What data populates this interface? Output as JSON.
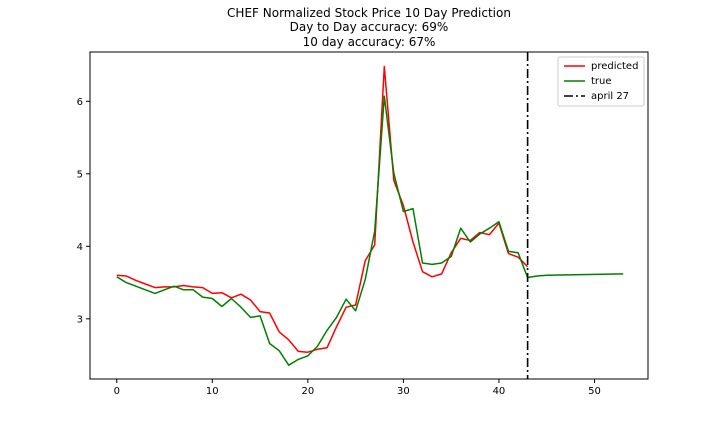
{
  "chart_data": {
    "type": "line",
    "title_lines": [
      "CHEF Normalized Stock Price 10 Day Prediction",
      "Day to Day accuracy: 69%",
      "10 day accuracy: 67%"
    ],
    "xlabel": "",
    "ylabel": "",
    "xlim": [
      -2.8,
      55.6
    ],
    "ylim": [
      2.17,
      6.68
    ],
    "xticks": [
      0,
      10,
      20,
      30,
      40,
      50
    ],
    "yticks": [
      3,
      4,
      5,
      6
    ],
    "grid": false,
    "legend_position": "top-right",
    "series": [
      {
        "name": "predicted",
        "color": "#ff0000",
        "dash": "solid",
        "x": [
          0,
          1,
          2,
          3,
          4,
          5,
          6,
          7,
          8,
          9,
          10,
          11,
          12,
          13,
          14,
          15,
          16,
          17,
          18,
          19,
          20,
          21,
          22,
          23,
          24,
          25,
          26,
          27,
          28,
          29,
          30,
          31,
          32,
          33,
          34,
          35,
          36,
          37,
          38,
          39,
          40,
          41,
          42,
          43
        ],
        "y": [
          3.6,
          3.59,
          3.53,
          3.48,
          3.43,
          3.44,
          3.44,
          3.46,
          3.44,
          3.43,
          3.35,
          3.36,
          3.29,
          3.34,
          3.26,
          3.1,
          3.08,
          2.82,
          2.71,
          2.55,
          2.54,
          2.58,
          2.6,
          2.89,
          3.16,
          3.19,
          3.8,
          4.02,
          6.48,
          4.91,
          4.56,
          4.06,
          3.65,
          3.58,
          3.62,
          3.91,
          4.11,
          4.08,
          4.19,
          4.16,
          4.32,
          3.9,
          3.85,
          3.72
        ]
      },
      {
        "name": "true",
        "color": "#008000",
        "dash": "solid",
        "x": [
          0,
          1,
          2,
          3,
          4,
          5,
          6,
          7,
          8,
          9,
          10,
          11,
          12,
          13,
          14,
          15,
          16,
          17,
          18,
          19,
          20,
          21,
          22,
          23,
          24,
          25,
          26,
          27,
          28,
          29,
          30,
          31,
          32,
          33,
          34,
          35,
          36,
          37,
          38,
          39,
          40,
          41,
          42,
          43,
          44,
          45,
          53
        ],
        "y": [
          3.58,
          3.5,
          3.45,
          3.4,
          3.35,
          3.4,
          3.45,
          3.4,
          3.4,
          3.3,
          3.28,
          3.17,
          3.28,
          3.16,
          3.02,
          3.04,
          2.66,
          2.56,
          2.36,
          2.44,
          2.49,
          2.62,
          2.84,
          3.02,
          3.27,
          3.11,
          3.54,
          4.21,
          6.07,
          5.01,
          4.48,
          4.52,
          3.77,
          3.75,
          3.77,
          3.86,
          4.25,
          4.06,
          4.17,
          4.25,
          4.34,
          3.93,
          3.91,
          3.57,
          3.59,
          3.6,
          3.62
        ]
      },
      {
        "name": "april 27",
        "color": "#000000",
        "dash": "dashdot",
        "vline_x": 43
      }
    ]
  }
}
